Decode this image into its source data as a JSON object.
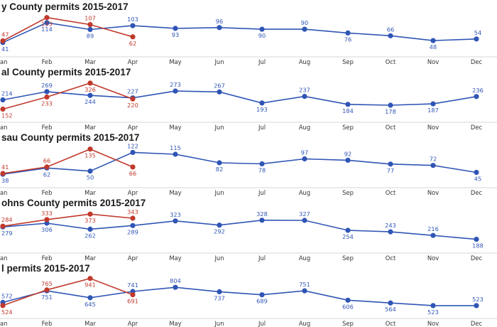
{
  "chart_data": [
    {
      "type": "line",
      "title": "y County permits 2015-2017",
      "categories": [
        "Jan",
        "Feb",
        "Mar",
        "Apr",
        "May",
        "Jun",
        "Jul",
        "Aug",
        "Sep",
        "Oct",
        "Nov",
        "Dec"
      ],
      "series": [
        {
          "values": [
            41,
            114,
            89,
            103,
            93,
            96,
            90,
            90,
            76,
            66,
            48,
            54
          ],
          "color": "#2f55b5"
        },
        {
          "values": [
            47,
            133,
            107,
            62,
            null,
            null,
            null,
            null,
            null,
            null,
            null,
            null
          ],
          "color": "#c0392b"
        }
      ],
      "ylim": [
        30,
        140
      ],
      "grid": false
    },
    {
      "type": "line",
      "title": "al County permits 2015-2017",
      "categories": [
        "Jan",
        "Feb",
        "Mar",
        "Apr",
        "May",
        "Jun",
        "Jul",
        "Aug",
        "Sep",
        "Oct",
        "Nov",
        "Dec"
      ],
      "series": [
        {
          "values": [
            214,
            269,
            244,
            227,
            273,
            267,
            193,
            237,
            184,
            178,
            187,
            236
          ],
          "color": "#2f55b5"
        },
        {
          "values": [
            152,
            233,
            326,
            220,
            null,
            null,
            null,
            null,
            null,
            null,
            null,
            null
          ],
          "color": "#c0392b"
        }
      ],
      "ylim": [
        140,
        340
      ],
      "grid": false
    },
    {
      "type": "line",
      "title": "sau County permits 2015-2017",
      "categories": [
        "Jan",
        "Feb",
        "Mar",
        "Apr",
        "May",
        "Jun",
        "Jul",
        "Aug",
        "Sep",
        "Oct",
        "Nov",
        "Dec"
      ],
      "series": [
        {
          "values": [
            38,
            62,
            50,
            122,
            115,
            82,
            78,
            97,
            92,
            77,
            72,
            45
          ],
          "color": "#2f55b5"
        },
        {
          "values": [
            41,
            66,
            135,
            66,
            null,
            null,
            null,
            null,
            null,
            null,
            null,
            null
          ],
          "color": "#c0392b"
        }
      ],
      "ylim": [
        30,
        145
      ],
      "grid": false
    },
    {
      "type": "line",
      "title": "ohns County permits 2015-2017",
      "categories": [
        "Jan",
        "Feb",
        "Mar",
        "Apr",
        "May",
        "Jun",
        "Jul",
        "Aug",
        "Sep",
        "Oct",
        "Nov",
        "Dec"
      ],
      "series": [
        {
          "values": [
            279,
            306,
            262,
            289,
            323,
            292,
            328,
            327,
            254,
            243,
            216,
            188
          ],
          "color": "#2f55b5"
        },
        {
          "values": [
            284,
            333,
            373,
            343,
            null,
            null,
            null,
            null,
            null,
            null,
            null,
            null
          ],
          "color": "#c0392b"
        }
      ],
      "ylim": [
        170,
        390
      ],
      "grid": false
    },
    {
      "type": "line",
      "title": "l permits 2015-2017",
      "categories": [
        "Jan",
        "Feb",
        "Mar",
        "Apr",
        "May",
        "Jun",
        "Jul",
        "Aug",
        "Sep",
        "Oct",
        "Nov",
        "Dec"
      ],
      "series": [
        {
          "values": [
            572,
            751,
            645,
            741,
            804,
            737,
            689,
            751,
            606,
            564,
            523,
            523
          ],
          "color": "#2f55b5"
        },
        {
          "values": [
            524,
            765,
            941,
            691,
            null,
            null,
            null,
            null,
            null,
            null,
            null,
            null
          ],
          "color": "#c0392b"
        }
      ],
      "ylim": [
        500,
        960
      ],
      "grid": false
    }
  ]
}
